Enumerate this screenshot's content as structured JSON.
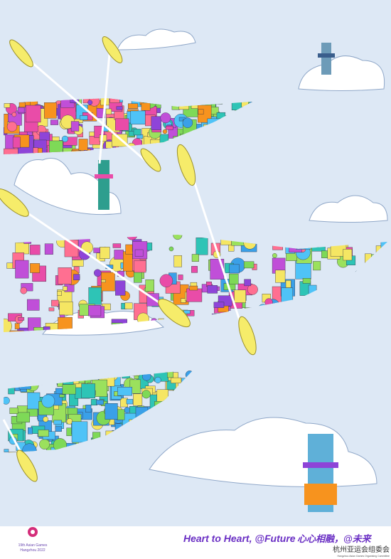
{
  "logo": {
    "line1": "19th Asian Games",
    "line2": "Hangzhou 2022"
  },
  "slogan": {
    "english": "Heart to Heart, @Future",
    "chinese": "心心相融，@未来"
  },
  "organizer": {
    "chinese": "杭州亚运会组委会",
    "english": "Hangzhou Asian Games Organising Committee"
  }
}
